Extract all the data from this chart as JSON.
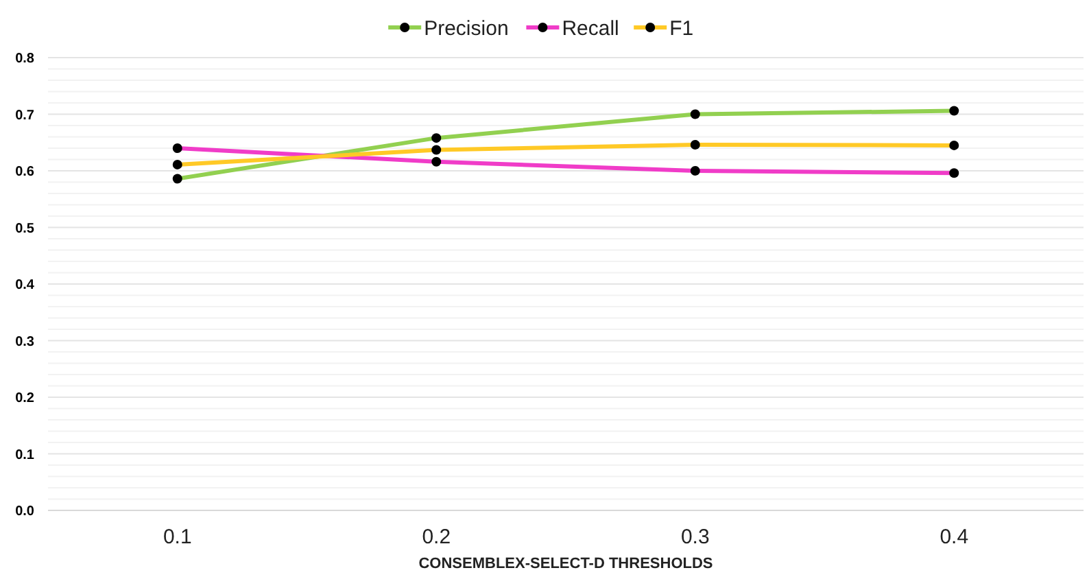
{
  "chart_data": {
    "type": "line",
    "xlabel": "CONSEMBLEX-SELECT-D THRESHOLDS",
    "categories": [
      "0.1",
      "0.2",
      "0.3",
      "0.4"
    ],
    "series": [
      {
        "name": "Precision",
        "color": "#92d050",
        "values": [
          0.586,
          0.658,
          0.7,
          0.706
        ]
      },
      {
        "name": "Recall",
        "color": "#f03cc8",
        "values": [
          0.64,
          0.616,
          0.6,
          0.596
        ]
      },
      {
        "name": "F1",
        "color": "#ffc926",
        "values": [
          0.611,
          0.637,
          0.646,
          0.645
        ]
      }
    ],
    "ylim": [
      0,
      0.8
    ],
    "yticks": [
      {
        "value": 0,
        "label": "0.0"
      },
      {
        "value": 0.02,
        "label": null
      },
      {
        "value": 0.04,
        "label": null
      },
      {
        "value": 0.06,
        "label": null
      },
      {
        "value": 0.08,
        "label": null
      },
      0.1,
      {
        "value": 0.12,
        "label": null
      },
      {
        "value": 0.14,
        "label": null
      },
      {
        "value": 0.16,
        "label": null
      },
      {
        "value": 0.18,
        "label": null
      },
      0.2,
      {
        "value": 0.22,
        "label": null
      },
      {
        "value": 0.24,
        "label": null
      },
      {
        "value": 0.26,
        "label": null
      },
      {
        "value": 0.28,
        "label": null
      },
      0.3,
      {
        "value": 0.32,
        "label": null
      },
      {
        "value": 0.34,
        "label": null
      },
      {
        "value": 0.36,
        "label": null
      },
      {
        "value": 0.38,
        "label": null
      },
      0.4,
      {
        "value": 0.42,
        "label": null
      },
      {
        "value": 0.44,
        "label": null
      },
      {
        "value": 0.46,
        "label": null
      },
      {
        "value": 0.48,
        "label": null
      },
      0.5,
      {
        "value": 0.52,
        "label": null
      },
      {
        "value": 0.54,
        "label": null
      },
      {
        "value": 0.56,
        "label": null
      },
      {
        "value": 0.58,
        "label": null
      },
      0.6,
      {
        "value": 0.62,
        "label": null
      },
      {
        "value": 0.64,
        "label": null
      },
      {
        "value": 0.66,
        "label": null
      },
      {
        "value": 0.68,
        "label": null
      },
      0.7,
      {
        "value": 0.72,
        "label": null
      },
      {
        "value": 0.74,
        "label": null
      },
      {
        "value": 0.76,
        "label": null
      },
      {
        "value": 0.78,
        "label": null
      },
      0.8
    ],
    "grid": true,
    "legend": "top",
    "marker": "circle",
    "line_style": "solid"
  }
}
